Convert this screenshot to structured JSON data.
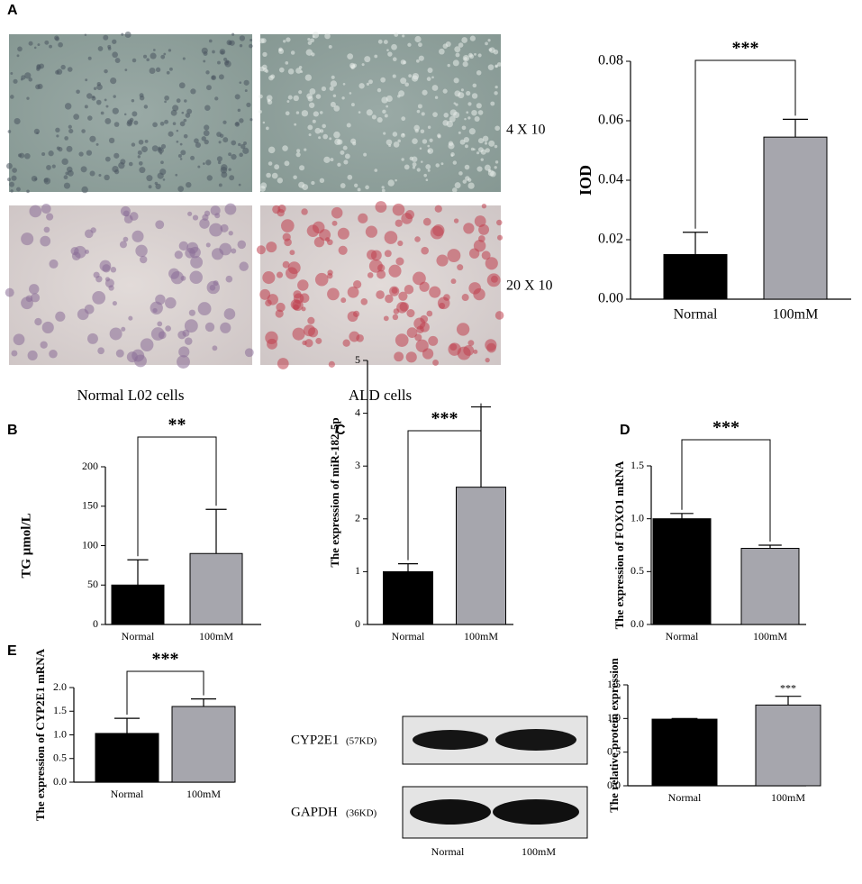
{
  "chart_data": [
    {
      "type": "bar",
      "panel": "A",
      "ylabel": "IOD",
      "categories": [
        "Normal",
        "100mM"
      ],
      "values": [
        0.015,
        0.0545
      ],
      "errors": [
        0.0075,
        0.006
      ],
      "colors": [
        "#000000",
        "#a6a6ad"
      ],
      "ylim": [
        0,
        0.08
      ],
      "yticks": [
        {
          "value": 0,
          "label": "0.00"
        },
        {
          "value": 0.02,
          "label": "0.02"
        },
        {
          "value": 0.04,
          "label": "0.04"
        },
        {
          "value": 0.06,
          "label": "0.06"
        },
        {
          "value": 0.08,
          "label": "0.08"
        }
      ],
      "annotation": "***",
      "bracket": true
    },
    {
      "type": "bar",
      "panel": "B",
      "ylabel": "TG μmol/L",
      "categories": [
        "Normal",
        "100mM"
      ],
      "values": [
        50,
        90
      ],
      "errors": [
        32,
        56
      ],
      "colors": [
        "#000000",
        "#a6a6ad"
      ],
      "ylim": [
        0,
        200
      ],
      "yticks": [
        0,
        50,
        100,
        150,
        200
      ],
      "annotation": "**",
      "bracket": true
    },
    {
      "type": "bar",
      "panel": "C",
      "ylabel": "The expression of miR-182-5p",
      "categories": [
        "Normal",
        "100mM"
      ],
      "values": [
        1.0,
        2.6
      ],
      "errors": [
        0.15,
        1.52
      ],
      "colors": [
        "#000000",
        "#a6a6ad"
      ],
      "ylim": [
        0,
        5
      ],
      "yticks": [
        0,
        1,
        2,
        3,
        4,
        5
      ],
      "annotation": "***",
      "bracket": true
    },
    {
      "type": "bar",
      "panel": "D",
      "ylabel": "The expression of FOXO1 mRNA",
      "categories": [
        "Normal",
        "100mM"
      ],
      "values": [
        1.0,
        0.72
      ],
      "errors": [
        0.05,
        0.03
      ],
      "colors": [
        "#000000",
        "#a6a6ad"
      ],
      "ylim": [
        0,
        1.5
      ],
      "yticks": [
        {
          "value": 0,
          "label": "0.0"
        },
        0.5,
        {
          "value": 1,
          "label": "1.0"
        },
        1.5
      ],
      "annotation": "***",
      "bracket": true
    },
    {
      "type": "bar",
      "panel": "E",
      "ylabel": "The expression of CYP2E1 mRNA",
      "categories": [
        "Normal",
        "100mM"
      ],
      "values": [
        1.03,
        1.6
      ],
      "errors": [
        0.32,
        0.16
      ],
      "colors": [
        "#000000",
        "#a6a6ad"
      ],
      "ylim": [
        0,
        2
      ],
      "yticks": [
        {
          "value": 0,
          "label": "0.0"
        },
        0.5,
        {
          "value": 1,
          "label": "1.0"
        },
        1.5,
        {
          "value": 2,
          "label": "2.0"
        }
      ],
      "annotation": "***",
      "bracket": true
    },
    {
      "type": "bar",
      "ylabel": "The relative protein expression",
      "categories": [
        "Normal",
        "100mM"
      ],
      "values": [
        0.99,
        1.2
      ],
      "errors": [
        0.01,
        0.13
      ],
      "colors": [
        "#000000",
        "#a6a6ad"
      ],
      "ylim": [
        0,
        1.5
      ],
      "yticks": [
        {
          "value": 0,
          "label": "0.0"
        },
        0.5,
        {
          "value": 1,
          "label": "1.0"
        },
        1.5
      ],
      "annotation": "***",
      "bracket": false
    }
  ],
  "images": {
    "magnifications": [
      "4 X 10",
      "20 X 10"
    ],
    "cells": [
      "Normal L02 cells",
      "ALD cells"
    ]
  },
  "blot": {
    "proteins": [
      {
        "name": "CYP2E1",
        "size": "(57KD)"
      },
      {
        "name": "GAPDH",
        "size": "(36KD)"
      }
    ],
    "lanes": [
      "Normal",
      "100mM"
    ]
  }
}
